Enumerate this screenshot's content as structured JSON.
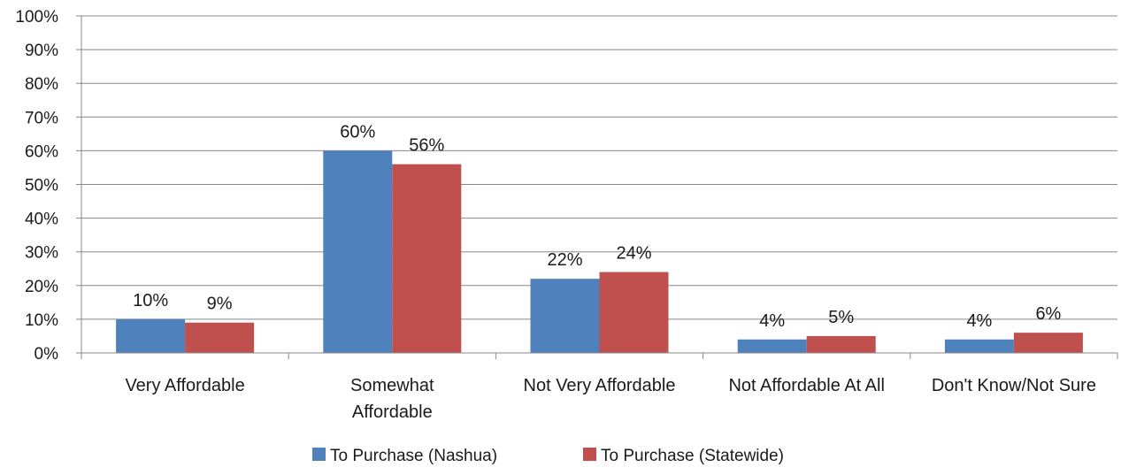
{
  "chart_data": {
    "type": "bar",
    "title": "",
    "xlabel": "",
    "ylabel": "",
    "ylim": [
      0,
      100
    ],
    "y_ticks": [
      0,
      10,
      20,
      30,
      40,
      50,
      60,
      70,
      80,
      90,
      100
    ],
    "y_tick_format": "percent",
    "grid": true,
    "legend_position": "bottom",
    "categories": [
      [
        "Very Affordable"
      ],
      [
        "Somewhat",
        "Affordable"
      ],
      [
        "Not Very Affordable"
      ],
      [
        "Not Affordable At All"
      ],
      [
        "Don't Know/Not Sure"
      ]
    ],
    "series": [
      {
        "name": "To Purchase (Nashua)",
        "color": "#4F81BD",
        "values": [
          10,
          60,
          22,
          4,
          4
        ],
        "labels": [
          "10%",
          "60%",
          "22%",
          "4%",
          "4%"
        ]
      },
      {
        "name": "To Purchase (Statewide)",
        "color": "#C0504D",
        "values": [
          9,
          56,
          24,
          5,
          6
        ],
        "labels": [
          "9%",
          "56%",
          "24%",
          "5%",
          "6%"
        ]
      }
    ],
    "colors": {
      "gridline": "#888888",
      "axis": "#888888"
    }
  }
}
